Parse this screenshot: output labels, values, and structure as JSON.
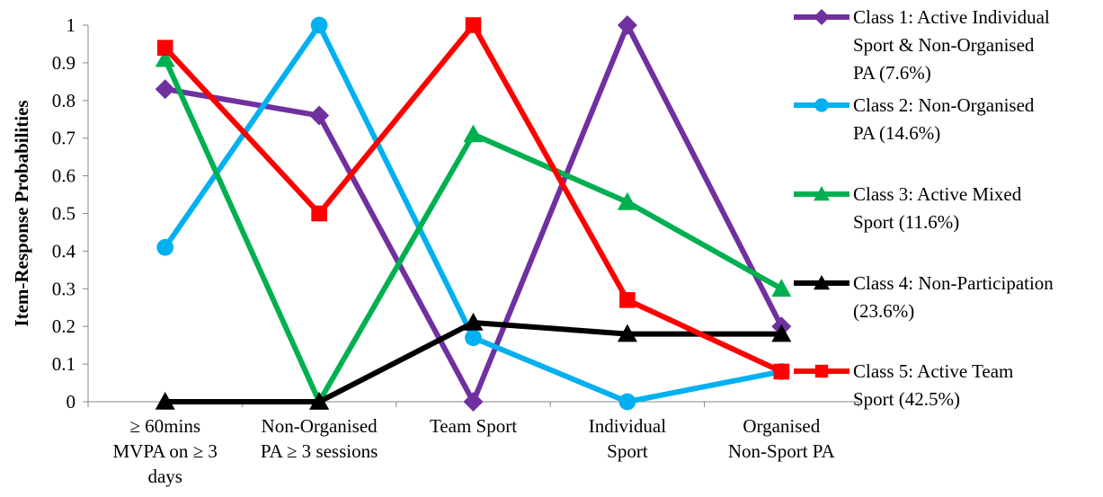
{
  "chart_data": {
    "type": "line",
    "ylabel": "Item-Response Probabilities",
    "xlabel": "",
    "ylim": [
      0,
      1
    ],
    "yticks": [
      "0",
      "0.1",
      "0.2",
      "0.3",
      "0.4",
      "0.5",
      "0.6",
      "0.7",
      "0.8",
      "0.9",
      "1"
    ],
    "categories": [
      [
        "≥ 60mins",
        "MVPA on ≥ 3",
        "days"
      ],
      [
        "Non-Organised",
        "PA ≥ 3 sessions"
      ],
      [
        "Team Sport"
      ],
      [
        "Individual",
        "Sport"
      ],
      [
        "Organised",
        "Non-Sport PA"
      ]
    ],
    "grid": false,
    "legend_position": "right",
    "series": [
      {
        "name": [
          "Class 1: Active Individual",
          "Sport & Non-Organised",
          "PA (7.6%)"
        ],
        "values": [
          0.83,
          0.76,
          0.0,
          1.0,
          0.2
        ],
        "color": "#7030A0",
        "marker": "diamond"
      },
      {
        "name": [
          "Class 2: Non-Organised",
          "PA (14.6%)"
        ],
        "values": [
          0.41,
          1.0,
          0.17,
          0.0,
          0.08
        ],
        "color": "#00B0F0",
        "marker": "circle"
      },
      {
        "name": [
          "Class 3: Active Mixed",
          "Sport (11.6%)"
        ],
        "values": [
          0.91,
          0.0,
          0.71,
          0.53,
          0.3
        ],
        "color": "#00B050",
        "marker": "triangle"
      },
      {
        "name": [
          "Class 4: Non-Participation",
          "(23.6%)"
        ],
        "values": [
          0.0,
          0.0,
          0.21,
          0.18,
          0.18
        ],
        "color": "#000000",
        "marker": "triangle"
      },
      {
        "name": [
          "Class 5: Active Team",
          "Sport (42.5%)"
        ],
        "values": [
          0.94,
          0.5,
          1.0,
          0.27,
          0.08
        ],
        "color": "#FF0000",
        "marker": "square"
      }
    ]
  }
}
